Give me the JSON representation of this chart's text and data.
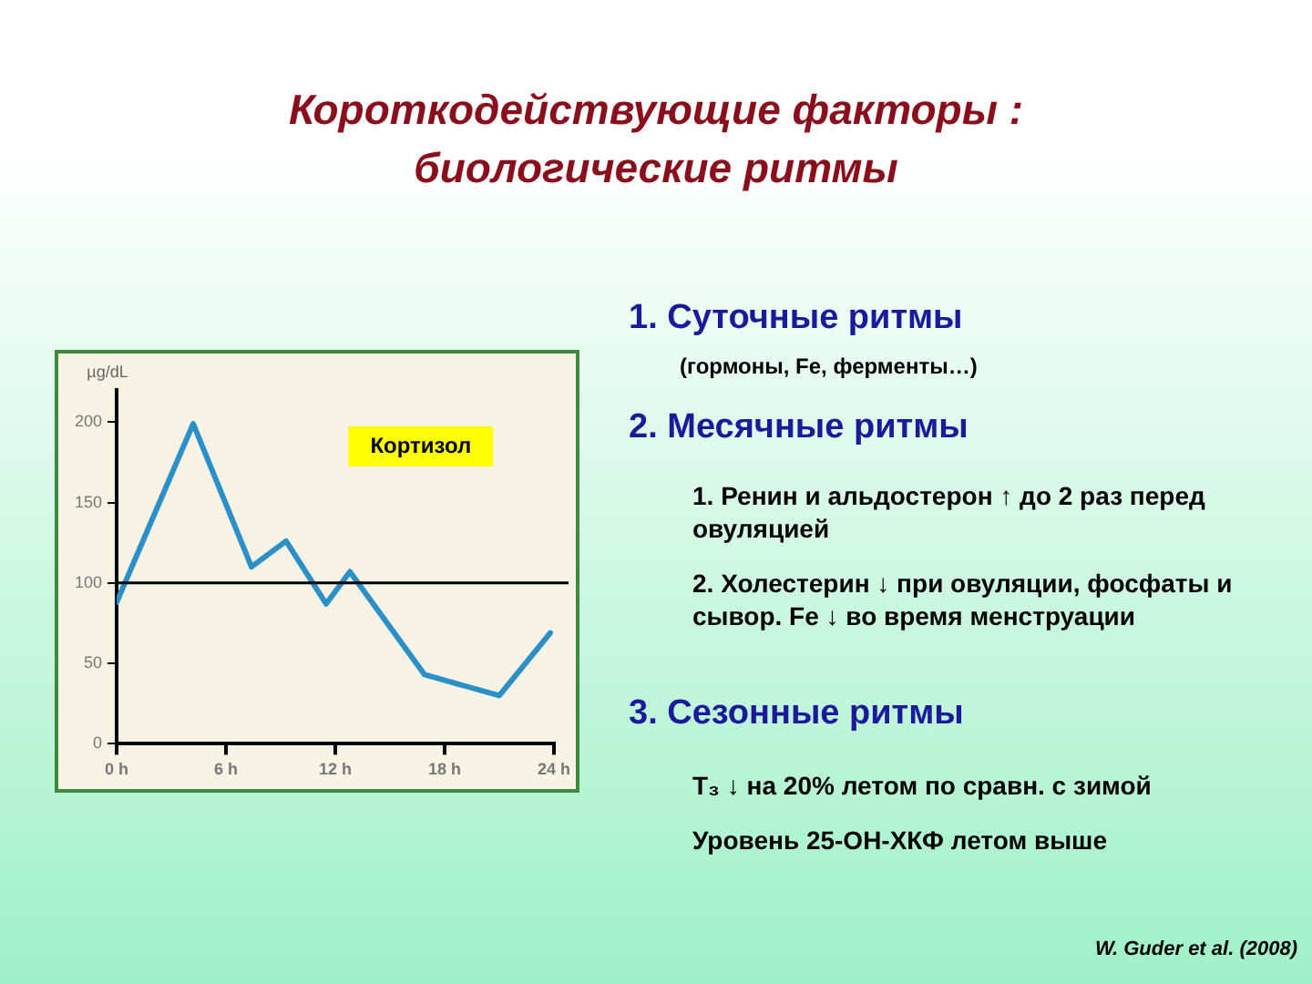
{
  "chart_data": {
    "type": "line",
    "title": "Короткодействующие факторы : биологические ритмы",
    "ylabel": "µg/dL",
    "x": [
      0,
      4.2,
      7.4,
      9.3,
      11.5,
      12.8,
      16.9,
      21,
      23.8
    ],
    "series": [
      {
        "color": "#2b8fc8",
        "values": [
          88,
          199,
          110,
          126,
          87,
          107,
          43,
          30,
          69
        ]
      }
    ],
    "xlim": [
      0,
      24
    ],
    "ylim": [
      0,
      220
    ],
    "xticks": [
      {
        "value": 0,
        "label": "0 h"
      },
      {
        "value": 6,
        "label": "6 h"
      },
      {
        "value": 12,
        "label": "12 h"
      },
      {
        "value": 18,
        "label": "18 h"
      },
      {
        "value": 24,
        "label": "24 h"
      }
    ],
    "yticks": [
      0,
      50,
      100,
      150,
      200
    ],
    "ref_lines": [
      {
        "axis": "y",
        "value": 100,
        "color": "#000000"
      }
    ],
    "grid": false,
    "marker": "none",
    "line_style": "solid",
    "legend": false,
    "annotations": [
      "Кортизол",
      "1. Суточные ритмы",
      "(гормоны, Fe, ферменты…)",
      "2. Месячные ритмы",
      "1. Ренин и альдостерон ↑ до 2 раз перед овуляцией",
      "2. Холестерин ↓ при овуляции, фосфаты и сывор. Fe ↓ во время менструации",
      "3. Сезонные ритмы",
      "T₃ ↓ на 20% летом по сравн. с зимой",
      "Уровень 25-ОН-ХКФ летом выше",
      "W. Guder et al. (2008)"
    ]
  }
}
